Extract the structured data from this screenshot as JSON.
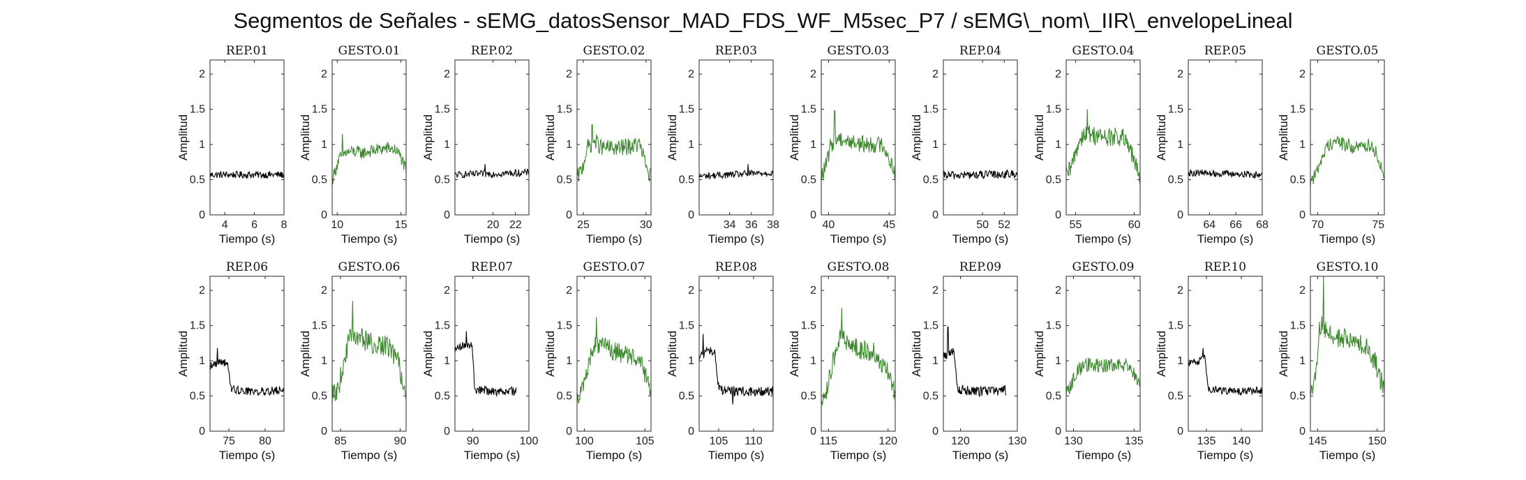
{
  "figure": {
    "title": "Segmentos de Señales - sEMG_datosSensor_MAD_FDS_WF_M5sec_P7 / sEMG\\_nom\\_IIR\\_envelopeLineal"
  },
  "chart_data": {
    "type": "line",
    "xlabel": "Tiempo (s)",
    "ylabel": "Amplitud",
    "ylim": [
      0,
      2.2
    ],
    "yticks": [
      0,
      0.5,
      1,
      1.5,
      2
    ],
    "grid": false,
    "colors": {
      "rep": "#000000",
      "gesto": "#3d8a2e"
    },
    "panels": [
      {
        "title": "REP_01",
        "kind": "rep",
        "xlim": [
          3,
          8
        ],
        "xticks": [
          4,
          6,
          8
        ],
        "series": [
          {
            "x": [
              3.0,
              8.0
            ],
            "y": [
              0.57,
              0.57
            ],
            "noise": 0.05,
            "t": [],
            "v": []
          }
        ]
      },
      {
        "title": "GESTO_01",
        "kind": "gesto",
        "xlim": [
          9.6,
          15.4
        ],
        "xticks": [
          10,
          15
        ],
        "series": [
          {
            "x": [
              9.6,
              9.8,
              10.1,
              10.6,
              11.2,
              12,
              13,
              14,
              14.6,
              15.0,
              15.4
            ],
            "y": [
              0.5,
              0.6,
              0.78,
              0.88,
              0.9,
              0.88,
              0.92,
              0.95,
              0.92,
              0.82,
              0.62
            ],
            "noise": 0.09,
            "t": [
              10.4
            ],
            "v": [
              1.15
            ]
          }
        ]
      },
      {
        "title": "REP_02",
        "kind": "rep",
        "xlim": [
          16.6,
          23.2
        ],
        "xticks": [
          20,
          22
        ],
        "series": [
          {
            "x": [
              16.6,
              23.2
            ],
            "y": [
              0.57,
              0.6
            ],
            "noise": 0.05,
            "t": [
              19.3
            ],
            "v": [
              0.72
            ]
          }
        ]
      },
      {
        "title": "GESTO_02",
        "kind": "gesto",
        "xlim": [
          24.5,
          30.4
        ],
        "xticks": [
          25,
          30
        ],
        "series": [
          {
            "x": [
              24.5,
              24.9,
              25.3,
              25.9,
              26.5,
              28,
              29.5,
              30.0,
              30.4
            ],
            "y": [
              0.52,
              0.65,
              0.95,
              1.05,
              0.95,
              0.95,
              1.0,
              0.7,
              0.52
            ],
            "noise": 0.12,
            "t": [
              25.7
            ],
            "v": [
              1.28
            ]
          }
        ]
      },
      {
        "title": "REP_03",
        "kind": "rep",
        "xlim": [
          31.2,
          38
        ],
        "xticks": [
          34,
          36,
          38
        ],
        "series": [
          {
            "x": [
              31.2,
              38
            ],
            "y": [
              0.55,
              0.6
            ],
            "noise": 0.05,
            "t": [
              35.7
            ],
            "v": [
              0.72
            ]
          }
        ]
      },
      {
        "title": "GESTO_03",
        "kind": "gesto",
        "xlim": [
          39.4,
          45.5
        ],
        "xticks": [
          40,
          45
        ],
        "series": [
          {
            "x": [
              39.4,
              39.8,
              40.2,
              40.8,
              41.5,
              43,
              44.5,
              45.0,
              45.5
            ],
            "y": [
              0.55,
              0.7,
              1.0,
              1.1,
              1.05,
              1.0,
              1.0,
              0.8,
              0.6
            ],
            "noise": 0.12,
            "t": [
              40.5
            ],
            "v": [
              1.48
            ]
          }
        ]
      },
      {
        "title": "REP_04",
        "kind": "rep",
        "xlim": [
          46.4,
          53.2
        ],
        "xticks": [
          50,
          52
        ],
        "series": [
          {
            "x": [
              46.4,
              53.2
            ],
            "y": [
              0.56,
              0.58
            ],
            "noise": 0.06,
            "t": [],
            "v": []
          }
        ]
      },
      {
        "title": "GESTO_04",
        "kind": "gesto",
        "xlim": [
          54.2,
          60.5
        ],
        "xticks": [
          55,
          60
        ],
        "series": [
          {
            "x": [
              54.2,
              54.6,
              55.1,
              55.6,
              56.3,
              57.5,
              59,
              59.7,
              60.1,
              60.5
            ],
            "y": [
              0.55,
              0.65,
              0.95,
              1.15,
              1.15,
              1.1,
              1.1,
              0.9,
              0.7,
              0.55
            ],
            "noise": 0.14,
            "t": [
              56.0
            ],
            "v": [
              1.5
            ]
          }
        ]
      },
      {
        "title": "REP_05",
        "kind": "rep",
        "xlim": [
          62.4,
          68
        ],
        "xticks": [
          64,
          66,
          68
        ],
        "series": [
          {
            "x": [
              62.4,
              68
            ],
            "y": [
              0.6,
              0.57
            ],
            "noise": 0.05,
            "t": [],
            "v": []
          }
        ]
      },
      {
        "title": "GESTO_05",
        "kind": "gesto",
        "xlim": [
          69.4,
          75.5
        ],
        "xticks": [
          70,
          75
        ],
        "series": [
          {
            "x": [
              69.4,
              69.8,
              70.3,
              70.9,
              71.5,
              73,
              74.5,
              75.0,
              75.5
            ],
            "y": [
              0.5,
              0.55,
              0.8,
              1.0,
              1.05,
              0.95,
              1.0,
              0.8,
              0.55
            ],
            "noise": 0.1,
            "t": [],
            "v": []
          }
        ]
      },
      {
        "title": "REP_06",
        "kind": "rep",
        "xlim": [
          72.4,
          82.6
        ],
        "xticks": [
          75,
          80
        ],
        "series": [
          {
            "x": [
              72.4,
              74.0,
              74.8,
              75.3,
              78,
              82.6
            ],
            "y": [
              0.92,
              1.0,
              0.95,
              0.6,
              0.56,
              0.58
            ],
            "noise": 0.06,
            "t": [
              73.4
            ],
            "v": [
              1.18
            ]
          }
        ]
      },
      {
        "title": "GESTO_06",
        "kind": "gesto",
        "xlim": [
          84.3,
          90.5
        ],
        "xticks": [
          85,
          90
        ],
        "series": [
          {
            "x": [
              84.3,
              84.8,
              85.2,
              85.7,
              86.3,
              87.5,
              89,
              89.8,
              90.2,
              90.5
            ],
            "y": [
              0.5,
              0.6,
              0.9,
              1.3,
              1.35,
              1.25,
              1.2,
              1.0,
              0.7,
              0.55
            ],
            "noise": 0.15,
            "t": [
              86.0
            ],
            "v": [
              1.85
            ]
          }
        ]
      },
      {
        "title": "REP_07",
        "kind": "rep",
        "xlim": [
          86.8,
          100
        ],
        "xticks": [
          90,
          100
        ],
        "series": [
          {
            "x": [
              86.8,
              89.2,
              89.9,
              90.3,
              94,
              97.8
            ],
            "y": [
              1.15,
              1.25,
              1.2,
              0.6,
              0.56,
              0.57
            ],
            "noise": 0.06,
            "t": [
              88.8
            ],
            "v": [
              1.42
            ]
          }
        ]
      },
      {
        "title": "GESTO_07",
        "kind": "gesto",
        "xlim": [
          99.4,
          105.5
        ],
        "xticks": [
          100,
          105
        ],
        "series": [
          {
            "x": [
              99.4,
              99.9,
              100.3,
              100.8,
              101.5,
              103,
              104.5,
              105.0,
              105.5
            ],
            "y": [
              0.5,
              0.6,
              0.9,
              1.25,
              1.2,
              1.1,
              1.05,
              0.8,
              0.55
            ],
            "noise": 0.14,
            "t": [
              101.0
            ],
            "v": [
              1.62
            ]
          }
        ]
      },
      {
        "title": "REP_08",
        "kind": "rep",
        "xlim": [
          102.2,
          112.8
        ],
        "xticks": [
          105,
          110
        ],
        "series": [
          {
            "x": [
              102.2,
              103.8,
              104.5,
              105.0,
              108,
              112.8
            ],
            "y": [
              1.05,
              1.15,
              1.1,
              0.6,
              0.56,
              0.57
            ],
            "noise": 0.07,
            "t": [
              102.8,
              107.0
            ],
            "v": [
              1.38,
              0.38
            ]
          }
        ]
      },
      {
        "title": "GESTO_08",
        "kind": "gesto",
        "xlim": [
          114.4,
          120.6
        ],
        "xticks": [
          115,
          120
        ],
        "series": [
          {
            "x": [
              114.4,
              114.9,
              115.3,
              115.8,
              116.4,
              117.5,
              119,
              119.8,
              120.2,
              120.6
            ],
            "y": [
              0.5,
              0.6,
              0.9,
              1.3,
              1.3,
              1.15,
              1.1,
              0.9,
              0.7,
              0.55
            ],
            "noise": 0.15,
            "t": [
              116.1
            ],
            "v": [
              1.75
            ]
          }
        ]
      },
      {
        "title": "REP_09",
        "kind": "rep",
        "xlim": [
          117,
          130
        ],
        "xticks": [
          120,
          130
        ],
        "series": [
          {
            "x": [
              117,
              118.4,
              119.0,
              119.4,
              123,
              128
            ],
            "y": [
              1.05,
              1.15,
              1.1,
              0.6,
              0.56,
              0.58
            ],
            "noise": 0.07,
            "t": [
              117.8
            ],
            "v": [
              1.48
            ]
          }
        ]
      },
      {
        "title": "GESTO_09",
        "kind": "gesto",
        "xlim": [
          129.4,
          135.5
        ],
        "xticks": [
          130,
          135
        ],
        "series": [
          {
            "x": [
              129.4,
              129.8,
              130.3,
              130.9,
              131.5,
              133,
              134.5,
              135.0,
              135.5
            ],
            "y": [
              0.55,
              0.65,
              0.85,
              0.95,
              0.95,
              0.92,
              0.95,
              0.8,
              0.6
            ],
            "noise": 0.1,
            "t": [],
            "v": []
          }
        ]
      },
      {
        "title": "REP_10",
        "kind": "rep",
        "xlim": [
          132.4,
          143
        ],
        "xticks": [
          135,
          140
        ],
        "series": [
          {
            "x": [
              132.4,
              134.2,
              134.8,
              135.3,
              139,
              143
            ],
            "y": [
              0.95,
              1.0,
              1.05,
              0.6,
              0.56,
              0.58
            ],
            "noise": 0.06,
            "t": [
              134.5
            ],
            "v": [
              1.18
            ]
          }
        ]
      },
      {
        "title": "GESTO_10",
        "kind": "gesto",
        "xlim": [
          144.4,
          150.6
        ],
        "xticks": [
          145,
          150
        ],
        "series": [
          {
            "x": [
              144.4,
              144.9,
              145.2,
              145.6,
              146.2,
              147.5,
              149,
              149.8,
              150.2,
              150.6
            ],
            "y": [
              0.55,
              0.8,
              1.5,
              1.45,
              1.35,
              1.3,
              1.2,
              1.0,
              0.75,
              0.6
            ],
            "noise": 0.15,
            "t": [
              145.5
            ],
            "v": [
              2.2
            ]
          }
        ]
      }
    ]
  }
}
